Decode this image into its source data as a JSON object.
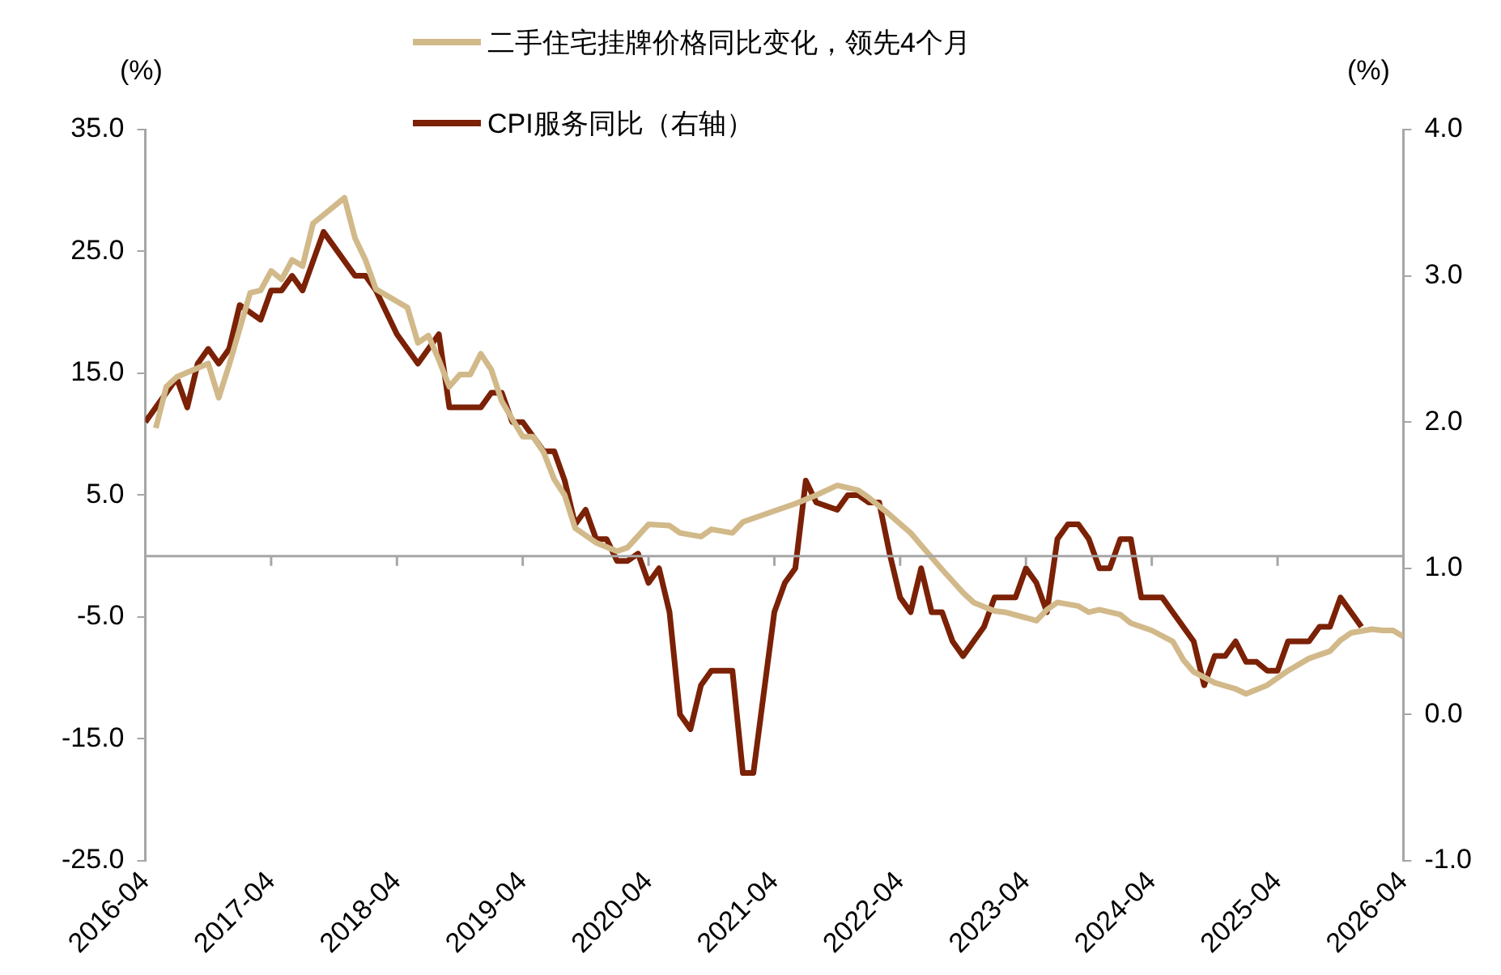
{
  "chart_data": {
    "type": "line",
    "ylabel": "(%)",
    "y2label": "(%)",
    "xlim": [
      "2016-04",
      "2026-04"
    ],
    "xticks": [
      "2016-04",
      "2017-04",
      "2018-04",
      "2019-04",
      "2020-04",
      "2021-04",
      "2022-04",
      "2023-04",
      "2024-04",
      "2025-04",
      "2026-04"
    ],
    "ylim": [
      -25,
      35
    ],
    "yticks": [
      {
        "value": -25,
        "label": "-25.0"
      },
      {
        "value": -15,
        "label": "-15.0"
      },
      {
        "value": -5,
        "label": "-5.0"
      },
      {
        "value": 5,
        "label": "5.0"
      },
      {
        "value": 15,
        "label": "15.0"
      },
      {
        "value": 25,
        "label": "25.0"
      },
      {
        "value": 35,
        "label": "35.0"
      }
    ],
    "y2lim": [
      -1,
      4
    ],
    "y2ticks": [
      {
        "value": -1,
        "label": "-1.0"
      },
      {
        "value": 0,
        "label": "0.0"
      },
      {
        "value": 1,
        "label": "1.0"
      },
      {
        "value": 2,
        "label": "2.0"
      },
      {
        "value": 3,
        "label": "3.0"
      },
      {
        "value": 4,
        "label": "4.0"
      }
    ],
    "grid": false,
    "legend": "top",
    "marker": "none",
    "line_style": "solid",
    "ref_lines": [
      {
        "axis": "y",
        "value": 0,
        "label": null,
        "color": "#a6a6a6"
      }
    ],
    "series": [
      {
        "name": "二手住宅挂牌价格同比变化，领先4个月",
        "color": "#d2b98a",
        "x": [
          "2016-05",
          "2016-06",
          "2016-07",
          "2016-10",
          "2016-11",
          "2016-12",
          "2017-02",
          "2017-03",
          "2017-04",
          "2017-05",
          "2017-06",
          "2017-07",
          "2017-08",
          "2017-09",
          "2017-11",
          "2017-12",
          "2018-01",
          "2018-02",
          "2018-04",
          "2018-05",
          "2018-06",
          "2018-07",
          "2018-08",
          "2018-09",
          "2018-10",
          "2018-11",
          "2018-12",
          "2019-01",
          "2019-02",
          "2019-04",
          "2019-05",
          "2019-06",
          "2019-07",
          "2019-08",
          "2019-09",
          "2019-11",
          "2020-01",
          "2020-02",
          "2020-04",
          "2020-06",
          "2020-07",
          "2020-09",
          "2020-10",
          "2020-12",
          "2021-01",
          "2021-03",
          "2021-06",
          "2021-08",
          "2021-10",
          "2021-12",
          "2022-01",
          "2022-03",
          "2022-05",
          "2022-06",
          "2022-08",
          "2022-10",
          "2022-11",
          "2023-01",
          "2023-02",
          "2023-05",
          "2023-06",
          "2023-07",
          "2023-09",
          "2023-10",
          "2023-11",
          "2024-01",
          "2024-02",
          "2024-04",
          "2024-06",
          "2024-07",
          "2024-08",
          "2024-10",
          "2024-12",
          "2025-01",
          "2025-03",
          "2025-04",
          "2025-05",
          "2025-07",
          "2025-09",
          "2025-10",
          "2025-11",
          "2026-01",
          "2026-02",
          "2026-03",
          "2026-04"
        ],
        "values": [
          10.5,
          13.9,
          14.7,
          15.8,
          13.0,
          15.7,
          21.6,
          21.8,
          23.4,
          22.7,
          24.3,
          23.8,
          27.3,
          28.0,
          29.4,
          26.1,
          24.3,
          21.9,
          20.9,
          20.4,
          17.5,
          18.1,
          16.1,
          13.9,
          14.9,
          14.9,
          16.6,
          15.3,
          12.7,
          9.8,
          9.8,
          8.5,
          6.3,
          5.0,
          2.3,
          1.1,
          0.4,
          0.7,
          2.6,
          2.5,
          1.9,
          1.6,
          2.2,
          1.9,
          2.8,
          3.4,
          4.3,
          5.0,
          5.8,
          5.4,
          4.8,
          3.4,
          1.9,
          0.9,
          -1.1,
          -3.0,
          -3.8,
          -4.5,
          -4.6,
          -5.3,
          -4.4,
          -3.8,
          -4.1,
          -4.6,
          -4.4,
          -4.8,
          -5.5,
          -6.1,
          -7.0,
          -8.5,
          -9.5,
          -10.4,
          -10.9,
          -11.3,
          -10.6,
          -10.0,
          -9.4,
          -8.4,
          -7.8,
          -6.9,
          -6.3,
          -6.0,
          -6.1,
          -6.1,
          -6.6
        ]
      },
      {
        "name": "CPI服务同比（右轴）",
        "color": "#7b2106",
        "axis": "y2",
        "x": [
          "2016-04",
          "2016-07",
          "2016-08",
          "2016-09",
          "2016-10",
          "2016-11",
          "2016-12",
          "2017-01",
          "2017-03",
          "2017-04",
          "2017-05",
          "2017-06",
          "2017-07",
          "2017-09",
          "2017-12",
          "2018-01",
          "2018-02",
          "2018-04",
          "2018-06",
          "2018-08",
          "2018-09",
          "2018-12",
          "2019-01",
          "2019-02",
          "2019-03",
          "2019-04",
          "2019-06",
          "2019-07",
          "2019-08",
          "2019-09",
          "2019-10",
          "2019-11",
          "2019-12",
          "2020-01",
          "2020-02",
          "2020-03",
          "2020-04",
          "2020-05",
          "2020-06",
          "2020-07",
          "2020-08",
          "2020-09",
          "2020-10",
          "2020-12",
          "2021-01",
          "2021-02",
          "2021-04",
          "2021-05",
          "2021-06",
          "2021-07",
          "2021-08",
          "2021-10",
          "2021-11",
          "2021-12",
          "2022-01",
          "2022-02",
          "2022-03",
          "2022-04",
          "2022-05",
          "2022-06",
          "2022-07",
          "2022-08",
          "2022-09",
          "2022-10",
          "2022-12",
          "2023-01",
          "2023-03",
          "2023-04",
          "2023-05",
          "2023-06",
          "2023-07",
          "2023-08",
          "2023-09",
          "2023-10",
          "2023-11",
          "2023-12",
          "2024-01",
          "2024-02",
          "2024-03",
          "2024-05",
          "2024-06",
          "2024-08",
          "2024-09",
          "2024-10",
          "2024-11",
          "2024-12",
          "2025-01",
          "2025-02",
          "2025-03",
          "2025-04",
          "2025-05",
          "2025-07",
          "2025-08",
          "2025-09",
          "2025-10",
          "2025-12"
        ],
        "values": [
          2.0,
          2.3,
          2.1,
          2.4,
          2.5,
          2.4,
          2.5,
          2.8,
          2.7,
          2.9,
          2.9,
          3.0,
          2.9,
          3.3,
          3.0,
          3.0,
          2.9,
          2.6,
          2.4,
          2.6,
          2.1,
          2.1,
          2.2,
          2.2,
          2.0,
          2.0,
          1.8,
          1.8,
          1.6,
          1.3,
          1.4,
          1.2,
          1.2,
          1.05,
          1.05,
          1.1,
          0.9,
          1.0,
          0.7,
          0.0,
          -0.1,
          0.2,
          0.3,
          0.3,
          -0.4,
          -0.4,
          0.7,
          0.9,
          1.0,
          1.6,
          1.45,
          1.4,
          1.5,
          1.5,
          1.45,
          1.45,
          1.1,
          0.8,
          0.7,
          1.0,
          0.7,
          0.7,
          0.5,
          0.4,
          0.6,
          0.8,
          0.8,
          1.0,
          0.9,
          0.7,
          1.2,
          1.3,
          1.3,
          1.2,
          1.0,
          1.0,
          1.2,
          1.2,
          0.8,
          0.8,
          0.7,
          0.5,
          0.2,
          0.4,
          0.4,
          0.5,
          0.36,
          0.36,
          0.3,
          0.3,
          0.5,
          0.5,
          0.6,
          0.6,
          0.8,
          0.6
        ]
      }
    ]
  }
}
